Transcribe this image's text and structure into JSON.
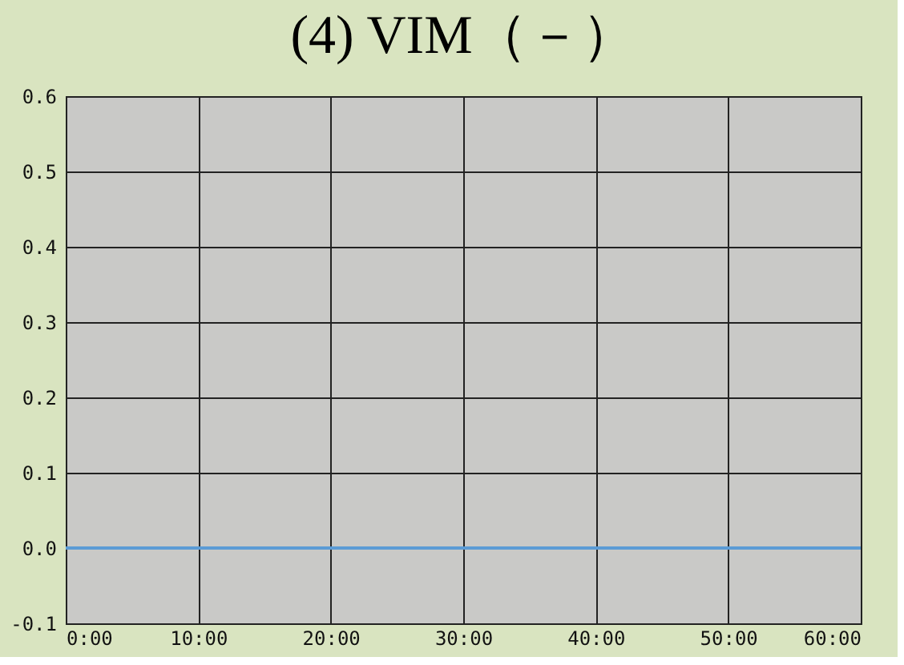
{
  "chart_data": {
    "type": "line",
    "title": "(4) VIM（－）",
    "x": [
      0,
      60
    ],
    "series": [
      {
        "color": "#5b9bd5",
        "values": [
          0,
          0
        ]
      }
    ],
    "xlim": [
      0,
      60
    ],
    "xticks": [
      {
        "value": 0,
        "label": "0:00"
      },
      {
        "value": 10,
        "label": "10:00"
      },
      {
        "value": 20,
        "label": "20:00"
      },
      {
        "value": 30,
        "label": "30:00"
      },
      {
        "value": 40,
        "label": "40:00"
      },
      {
        "value": 50,
        "label": "50:00"
      },
      {
        "value": 60,
        "label": "60:00"
      }
    ],
    "ylim": [
      -0.1,
      0.6
    ],
    "yticks": [
      -0.1,
      {
        "value": 0,
        "label": "0.0"
      },
      0.1,
      0.2,
      0.3,
      0.4,
      0.5,
      0.6
    ],
    "grid": true,
    "marker": "none",
    "line_style": "solid"
  }
}
